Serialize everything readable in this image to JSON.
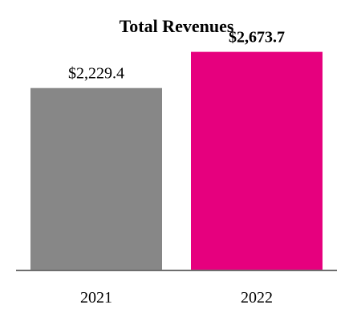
{
  "chart_data": {
    "type": "bar",
    "title": "Total Revenues",
    "categories": [
      "2021",
      "2022"
    ],
    "values": [
      2229.4,
      2673.7
    ],
    "data_labels": [
      "$2,229.4",
      "$2,673.7"
    ],
    "label_bold": [
      false,
      true
    ],
    "colors": [
      "#878787",
      "#e6007e"
    ],
    "axis_color": "#6e6e6e",
    "ylim": [
      0,
      2800
    ],
    "grid": false,
    "legend": "none"
  }
}
